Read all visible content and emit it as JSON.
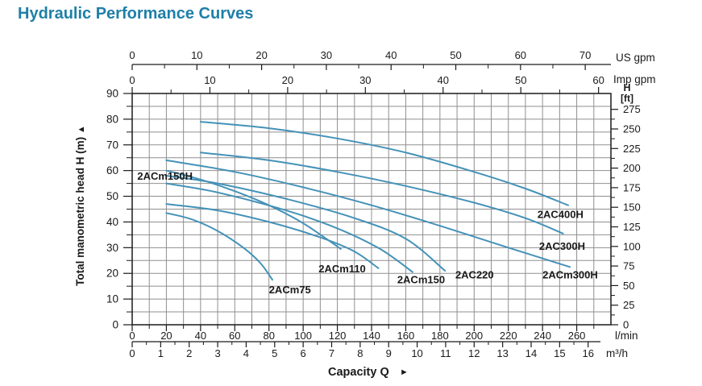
{
  "title": "Hydraulic Performance Curves",
  "colors": {
    "title": "#1E7FA8",
    "curve": "#4592B8",
    "grid": "#8F8F8F",
    "axis": "#1A1A1A",
    "text": "#1A1A1A"
  },
  "chart_data": {
    "type": "line",
    "title": "Hydraulic Performance Curves",
    "xlabel": "Capacity Q",
    "xlabel_arrow": "►",
    "ylabel": "Total manometric head H (m)",
    "ylabel_arrow": "▲",
    "grid": {
      "x_step_lmin": 10,
      "y_step_m": 5,
      "x_range_lmin": [
        0,
        280
      ],
      "y_range_m": [
        0,
        90
      ]
    },
    "axes": {
      "top_us_gpm": {
        "unit": "US gpm",
        "labels": [
          0,
          10,
          20,
          30,
          40,
          50,
          60,
          70
        ],
        "minor_step": 5,
        "lmin_per_unit": 3.7854
      },
      "top_imp_gpm": {
        "unit": "Imp gpm",
        "labels": [
          0,
          10,
          20,
          30,
          40,
          50,
          60
        ],
        "minor_step": 5,
        "lmin_per_unit": 4.5461
      },
      "bottom_lmin": {
        "unit": "l/min",
        "labels": [
          0,
          20,
          40,
          60,
          80,
          100,
          120,
          140,
          160,
          180,
          200,
          220,
          240,
          260
        ],
        "minor_step": 10,
        "lmin_per_unit": 1
      },
      "bottom_m3h": {
        "unit": "m³/h",
        "labels": [
          0,
          1,
          2,
          3,
          4,
          5,
          6,
          7,
          8,
          9,
          10,
          11,
          12,
          13,
          14,
          15,
          16
        ],
        "minor_step": 0.5,
        "lmin_per_unit": 16.6667
      },
      "left_head_m": {
        "labels": [
          0,
          10,
          20,
          30,
          40,
          50,
          60,
          70,
          80,
          90
        ],
        "minor_step": 5
      },
      "right_head_ft": {
        "unit_line1": "H",
        "unit_line2": "[ft]",
        "labels": [
          0,
          25,
          50,
          75,
          100,
          125,
          150,
          175,
          200,
          225,
          250,
          275
        ],
        "minor_step": 12.5,
        "m_per_ft": 0.3048
      }
    },
    "series": [
      {
        "name": "2AC400H",
        "points": [
          [
            40,
            79
          ],
          [
            80,
            76.5
          ],
          [
            120,
            72.5
          ],
          [
            160,
            67
          ],
          [
            200,
            59.5
          ],
          [
            230,
            53
          ],
          [
            255,
            46.5
          ]
        ],
        "label_q": 237,
        "label_h": 43
      },
      {
        "name": "2AC300H",
        "points": [
          [
            40,
            67
          ],
          [
            80,
            64
          ],
          [
            120,
            59.5
          ],
          [
            160,
            54
          ],
          [
            200,
            47.5
          ],
          [
            230,
            41.5
          ],
          [
            252,
            35.5
          ]
        ],
        "label_q": 238,
        "label_h": 30.5
      },
      {
        "name": "2ACm300H",
        "points": [
          [
            20,
            64
          ],
          [
            60,
            59.5
          ],
          [
            100,
            53.5
          ],
          [
            140,
            46.5
          ],
          [
            180,
            38.5
          ],
          [
            220,
            30
          ],
          [
            256,
            22.5
          ]
        ],
        "label_q": 240,
        "label_h": 19.5
      },
      {
        "name": "2ACm150H",
        "points": [
          [
            20,
            60
          ],
          [
            40,
            56.5
          ],
          [
            60,
            52
          ],
          [
            80,
            46.5
          ],
          [
            100,
            39.5
          ],
          [
            122,
            29.5
          ]
        ],
        "label_q": 3,
        "label_h": 57.8
      },
      {
        "name": "2AC220",
        "points": [
          [
            20,
            58
          ],
          [
            50,
            55
          ],
          [
            90,
            49
          ],
          [
            130,
            41.5
          ],
          [
            160,
            33.5
          ],
          [
            183,
            21
          ]
        ],
        "label_q": 189,
        "label_h": 19.5
      },
      {
        "name": "2ACm150",
        "points": [
          [
            20,
            55
          ],
          [
            50,
            51.5
          ],
          [
            90,
            44.5
          ],
          [
            120,
            37.5
          ],
          [
            145,
            29.5
          ],
          [
            164,
            20.5
          ]
        ],
        "label_q": 155,
        "label_h": 17.6
      },
      {
        "name": "2ACm110",
        "points": [
          [
            20,
            47
          ],
          [
            50,
            44.5
          ],
          [
            80,
            40
          ],
          [
            110,
            34
          ],
          [
            130,
            28.5
          ],
          [
            144,
            22
          ]
        ],
        "label_q": 109,
        "label_h": 21.8
      },
      {
        "name": "2ACm75",
        "points": [
          [
            20,
            43.5
          ],
          [
            35,
            41
          ],
          [
            50,
            36.5
          ],
          [
            65,
            30
          ],
          [
            75,
            24
          ],
          [
            82,
            17.5
          ]
        ],
        "label_q": 80,
        "label_h": 13.6
      }
    ]
  }
}
